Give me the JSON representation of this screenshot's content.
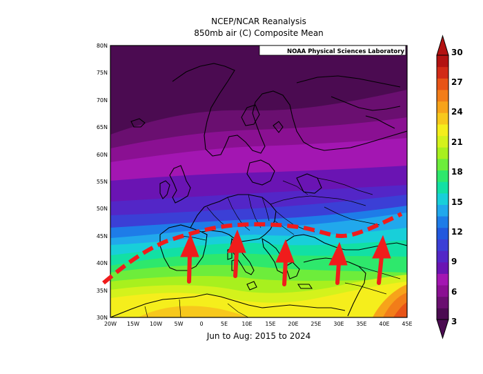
{
  "title_line1": "NCEP/NCAR Reanalysis",
  "title_line2": "850mb air (C) Composite Mean",
  "subtitle": "Jun to Aug: 2015 to 2024",
  "credit": "NOAA Physical Sciences Laboratory",
  "lat_labels": [
    "80N",
    "75N",
    "70N",
    "65N",
    "60N",
    "55N",
    "50N",
    "45N",
    "40N",
    "35N",
    "30N"
  ],
  "lon_labels": [
    "20W",
    "15W",
    "10W",
    "5W",
    "0",
    "5E",
    "10E",
    "15E",
    "20E",
    "25E",
    "30E",
    "35E",
    "40E",
    "45E"
  ],
  "colorbar": {
    "ticks": [
      "30",
      "27",
      "24",
      "21",
      "18",
      "15",
      "12",
      "9",
      "6",
      "3"
    ],
    "colors": [
      "#4b0b51",
      "#6a0f70",
      "#8a1092",
      "#a316b2",
      "#6a14b3",
      "#5326c7",
      "#3b3fd6",
      "#2158de",
      "#1e7ce8",
      "#21a8ec",
      "#18cfd9",
      "#12e0a4",
      "#2ee86c",
      "#6ded3b",
      "#a8f01e",
      "#d4f21c",
      "#f5ee1c",
      "#f7c81c",
      "#f7a31a",
      "#f27d19",
      "#e85417",
      "#d22a17",
      "#b31212"
    ]
  },
  "annotations": {
    "boundary_line": "red-dashed-curve",
    "arrows": "red-northward-arrows",
    "arrow_count": 5
  }
}
